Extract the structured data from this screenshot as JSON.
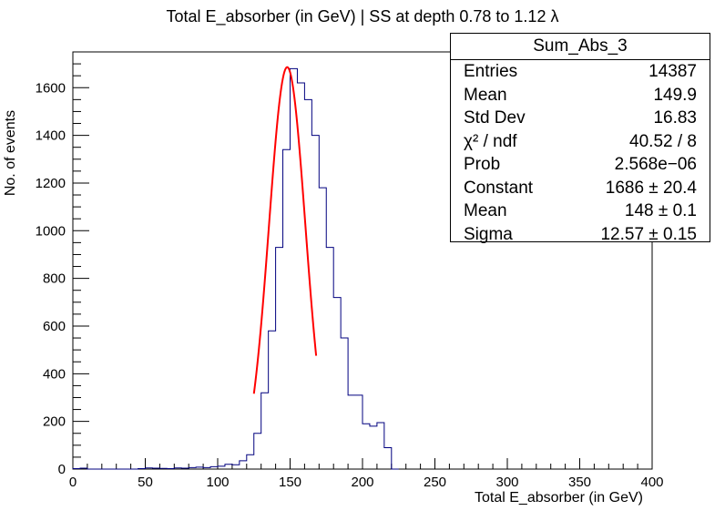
{
  "chart_data": {
    "type": "histogram",
    "title": "Total E_absorber (in GeV) | SS at depth 0.78 to 1.12 λ",
    "xlabel": "Total E_absorber (in GeV)",
    "ylabel": "No. of events",
    "xlim": [
      0,
      400
    ],
    "ylim": [
      0,
      1750
    ],
    "x_ticks": [
      0,
      50,
      100,
      150,
      200,
      250,
      300,
      350,
      400
    ],
    "y_ticks": [
      0,
      200,
      400,
      600,
      800,
      1000,
      1200,
      1400,
      1600
    ],
    "bin_width": 5,
    "bins": [
      {
        "x": 0,
        "y": 2
      },
      {
        "x": 5,
        "y": 4
      },
      {
        "x": 10,
        "y": 0
      },
      {
        "x": 15,
        "y": 0
      },
      {
        "x": 20,
        "y": 0
      },
      {
        "x": 25,
        "y": 0
      },
      {
        "x": 30,
        "y": 0
      },
      {
        "x": 35,
        "y": 0
      },
      {
        "x": 40,
        "y": 0
      },
      {
        "x": 45,
        "y": 2
      },
      {
        "x": 50,
        "y": 5
      },
      {
        "x": 55,
        "y": 4
      },
      {
        "x": 60,
        "y": 3
      },
      {
        "x": 65,
        "y": 2
      },
      {
        "x": 70,
        "y": 5
      },
      {
        "x": 75,
        "y": 4
      },
      {
        "x": 80,
        "y": 6
      },
      {
        "x": 85,
        "y": 8
      },
      {
        "x": 90,
        "y": 6
      },
      {
        "x": 95,
        "y": 10
      },
      {
        "x": 100,
        "y": 12
      },
      {
        "x": 105,
        "y": 20
      },
      {
        "x": 110,
        "y": 18
      },
      {
        "x": 115,
        "y": 35
      },
      {
        "x": 120,
        "y": 60
      },
      {
        "x": 125,
        "y": 150
      },
      {
        "x": 130,
        "y": 320
      },
      {
        "x": 135,
        "y": 580
      },
      {
        "x": 140,
        "y": 930
      },
      {
        "x": 145,
        "y": 1340
      },
      {
        "x": 150,
        "y": 1680
      },
      {
        "x": 155,
        "y": 1620
      },
      {
        "x": 160,
        "y": 1550
      },
      {
        "x": 165,
        "y": 1400
      },
      {
        "x": 170,
        "y": 1180
      },
      {
        "x": 175,
        "y": 930
      },
      {
        "x": 180,
        "y": 720
      },
      {
        "x": 185,
        "y": 550
      },
      {
        "x": 190,
        "y": 310
      },
      {
        "x": 195,
        "y": 310
      },
      {
        "x": 200,
        "y": 190
      },
      {
        "x": 205,
        "y": 180
      },
      {
        "x": 210,
        "y": 195
      },
      {
        "x": 215,
        "y": 90
      },
      {
        "x": 220,
        "y": 0
      }
    ],
    "fit": {
      "type": "gaussian",
      "constant": 1686,
      "mean": 148,
      "sigma": 12.57,
      "x_range": [
        125,
        168
      ]
    },
    "hist_color": "#00007f",
    "fit_color": "#ff0000",
    "stats_box": {
      "title": "Sum_Abs_3",
      "rows": [
        {
          "label": "Entries",
          "value": "14387"
        },
        {
          "label": "Mean",
          "value": "149.9"
        },
        {
          "label": "Std Dev",
          "value": "16.83"
        },
        {
          "label": "χ² / ndf",
          "value": "40.52 / 8"
        },
        {
          "label": "Prob",
          "value": "2.568e−06"
        },
        {
          "label": "Constant",
          "value": "1686 ± 20.4"
        },
        {
          "label": "Mean",
          "value": "148 ± 0.1"
        },
        {
          "label": "Sigma",
          "value": "12.57 ± 0.15"
        }
      ]
    }
  }
}
